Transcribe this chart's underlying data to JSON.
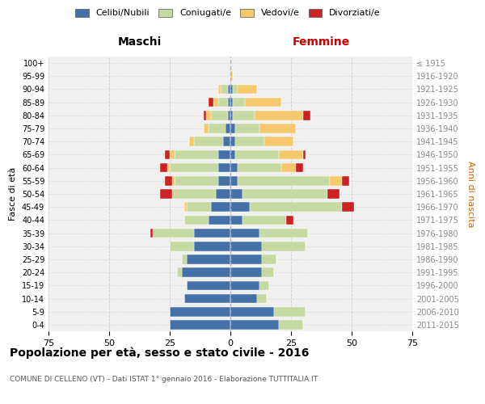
{
  "age_groups": [
    "0-4",
    "5-9",
    "10-14",
    "15-19",
    "20-24",
    "25-29",
    "30-34",
    "35-39",
    "40-44",
    "45-49",
    "50-54",
    "55-59",
    "60-64",
    "65-69",
    "70-74",
    "75-79",
    "80-84",
    "85-89",
    "90-94",
    "95-99",
    "100+"
  ],
  "birth_years": [
    "2011-2015",
    "2006-2010",
    "2001-2005",
    "1996-2000",
    "1991-1995",
    "1986-1990",
    "1981-1985",
    "1976-1980",
    "1971-1975",
    "1966-1970",
    "1961-1965",
    "1956-1960",
    "1951-1955",
    "1946-1950",
    "1941-1945",
    "1936-1940",
    "1931-1935",
    "1926-1930",
    "1921-1925",
    "1916-1920",
    "≤ 1915"
  ],
  "colors": {
    "celibe": "#4472a8",
    "coniugato": "#c5d9a0",
    "vedovo": "#f5c96b",
    "divorziato": "#cc2222"
  },
  "maschi": {
    "celibe": [
      25,
      25,
      19,
      18,
      20,
      18,
      15,
      15,
      9,
      8,
      6,
      5,
      5,
      5,
      3,
      2,
      1,
      1,
      1,
      0,
      0
    ],
    "coniugato": [
      0,
      0,
      0,
      0,
      2,
      2,
      10,
      17,
      10,
      10,
      18,
      18,
      20,
      18,
      12,
      7,
      7,
      4,
      3,
      0,
      0
    ],
    "vedovo": [
      0,
      0,
      0,
      0,
      0,
      0,
      0,
      0,
      0,
      1,
      0,
      1,
      1,
      2,
      2,
      2,
      2,
      2,
      1,
      0,
      0
    ],
    "divorziato": [
      0,
      0,
      0,
      0,
      0,
      0,
      0,
      1,
      0,
      0,
      5,
      3,
      3,
      2,
      0,
      0,
      1,
      2,
      0,
      0,
      0
    ]
  },
  "femmine": {
    "nubile": [
      20,
      18,
      11,
      12,
      13,
      13,
      13,
      12,
      5,
      8,
      5,
      3,
      3,
      2,
      2,
      2,
      1,
      1,
      1,
      0,
      0
    ],
    "coniugata": [
      10,
      13,
      4,
      4,
      5,
      6,
      18,
      20,
      18,
      38,
      35,
      38,
      18,
      18,
      12,
      10,
      9,
      5,
      2,
      0,
      0
    ],
    "vedova": [
      0,
      0,
      0,
      0,
      0,
      0,
      0,
      0,
      0,
      0,
      0,
      5,
      6,
      10,
      12,
      15,
      20,
      15,
      8,
      1,
      0
    ],
    "divorziata": [
      0,
      0,
      0,
      0,
      0,
      0,
      0,
      0,
      3,
      5,
      5,
      3,
      3,
      1,
      0,
      0,
      3,
      0,
      0,
      0,
      0
    ]
  },
  "xlim": 75,
  "title": "Popolazione per età, sesso e stato civile - 2016",
  "subtitle": "COMUNE DI CELLENO (VT) - Dati ISTAT 1° gennaio 2016 - Elaborazione TUTTITALIA.IT",
  "xlabel_left": "Maschi",
  "xlabel_right": "Femmine",
  "ylabel_left": "Fasce di età",
  "ylabel_right": "Anni di nascita",
  "legend_labels": [
    "Celibi/Nubili",
    "Coniugati/e",
    "Vedovi/e",
    "Divorziati/e"
  ],
  "bg_color": "#ffffff",
  "plot_bg": "#f0f0f0",
  "grid_color": "#cccccc"
}
